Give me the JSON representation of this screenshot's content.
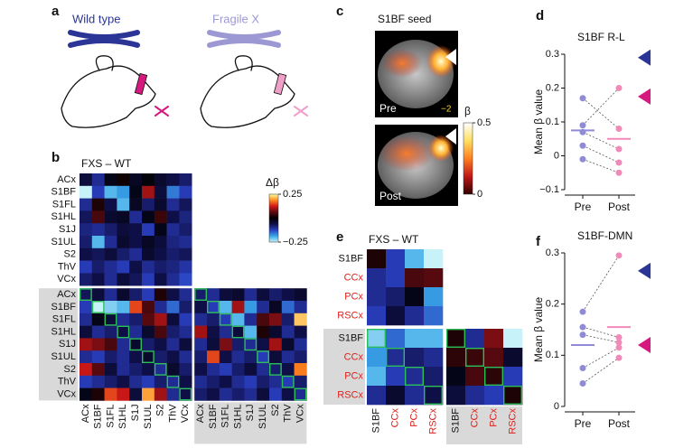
{
  "labels": [
    "a",
    "b",
    "c",
    "d",
    "e",
    "f"
  ],
  "illustration": {
    "left": "Wild type",
    "right": "Fragile X"
  },
  "brain": {
    "title": "S1BF seed",
    "pre": "Pre",
    "post": "Post",
    "slice": "−2",
    "colorbar": {
      "label": "β",
      "ticks": [
        0,
        0.5
      ]
    }
  },
  "chart_data": [
    {
      "type": "heatmap",
      "title": "FXS – WT",
      "colorbar_label": "Δβ",
      "zlim": [
        -0.25,
        0.25
      ],
      "zticks": [
        0.25,
        {
          "value": -0.25,
          "label": "−0.25"
        }
      ],
      "colormap": [
        "#c8f2fa",
        "#38a8e8",
        "#2a3fc0",
        "#10104a",
        "#000000",
        "#5a0a10",
        "#d01818",
        "#ff8a20",
        "#ffffa0"
      ],
      "rows": [
        "ACx",
        "S1BF",
        "S1FL",
        "S1HL",
        "S1J",
        "S1UL",
        "S2",
        "ThV",
        "VCx",
        "ACx",
        "S1BF",
        "S1FL",
        "S1HL",
        "S1J",
        "S1UL",
        "S2",
        "ThV",
        "VCx"
      ],
      "columns": [
        "ACx",
        "S1BF",
        "S1FL",
        "S1HL",
        "S1J",
        "S1UL",
        "S2",
        "ThV",
        "VCx",
        "ACx",
        "S1BF",
        "S1FL",
        "S1HL",
        "S1J",
        "S1UL",
        "S2",
        "ThV",
        "VCx"
      ],
      "matrix": [
        [
          -0.05,
          -0.1,
          -0.02,
          0.01,
          -0.03,
          -0.01,
          -0.04,
          -0.06,
          -0.08,
          null,
          null,
          null,
          null,
          null,
          null,
          null,
          null,
          null
        ],
        [
          -0.25,
          -0.12,
          -0.2,
          -0.18,
          -0.02,
          0.1,
          -0.05,
          -0.16,
          -0.12,
          null,
          null,
          null,
          null,
          null,
          null,
          null,
          null,
          null
        ],
        [
          -0.1,
          0.02,
          -0.06,
          -0.2,
          -0.03,
          -0.08,
          -0.04,
          -0.1,
          -0.07,
          null,
          null,
          null,
          null,
          null,
          null,
          null,
          null,
          null
        ],
        [
          -0.07,
          0.05,
          -0.04,
          -0.03,
          -0.1,
          -0.02,
          0.04,
          -0.06,
          -0.09,
          null,
          null,
          null,
          null,
          null,
          null,
          null,
          null,
          null
        ],
        [
          -0.09,
          -0.1,
          -0.08,
          -0.05,
          -0.06,
          -0.12,
          -0.02,
          -0.1,
          -0.08,
          null,
          null,
          null,
          null,
          null,
          null,
          null,
          null,
          null
        ],
        [
          -0.08,
          -0.2,
          -0.1,
          -0.04,
          -0.06,
          -0.03,
          -0.05,
          -0.09,
          -0.1,
          null,
          null,
          null,
          null,
          null,
          null,
          null,
          null,
          null
        ],
        [
          -0.06,
          -0.07,
          -0.05,
          -0.08,
          -0.1,
          -0.04,
          -0.06,
          -0.08,
          -0.07,
          null,
          null,
          null,
          null,
          null,
          null,
          null,
          null,
          null
        ],
        [
          -0.12,
          -0.08,
          -0.1,
          -0.12,
          -0.06,
          -0.1,
          -0.08,
          -0.09,
          -0.11,
          null,
          null,
          null,
          null,
          null,
          null,
          null,
          null,
          null
        ],
        [
          -0.08,
          -0.06,
          -0.1,
          -0.05,
          -0.07,
          -0.12,
          -0.06,
          -0.1,
          -0.13,
          null,
          null,
          null,
          null,
          null,
          null,
          null,
          null,
          null
        ],
        [
          -0.07,
          -0.05,
          -0.1,
          -0.04,
          -0.08,
          -0.12,
          0.02,
          -0.06,
          -0.1,
          -0.08,
          -0.1,
          -0.05,
          -0.04,
          -0.1,
          -0.05,
          -0.08,
          -0.06,
          -0.04
        ],
        [
          -0.12,
          -0.25,
          -0.22,
          -0.2,
          0.15,
          0.05,
          -0.1,
          -0.15,
          -0.08,
          -0.06,
          -0.12,
          -0.2,
          0.1,
          -0.18,
          -0.1,
          -0.03,
          -0.15,
          -0.1
        ],
        [
          -0.1,
          -0.02,
          -0.05,
          -0.1,
          -0.08,
          0.06,
          0.1,
          -0.05,
          -0.12,
          -0.1,
          -0.08,
          -0.12,
          -0.2,
          -0.1,
          0.05,
          0.08,
          -0.08,
          0.22
        ],
        [
          -0.05,
          -0.1,
          -0.08,
          -0.06,
          -0.1,
          -0.04,
          0.05,
          -0.08,
          -0.1,
          0.1,
          -0.06,
          -0.1,
          -0.05,
          -0.2,
          0.02,
          -0.04,
          -0.1,
          -0.06
        ],
        [
          0.1,
          0.08,
          0.05,
          -0.1,
          -0.04,
          -0.08,
          -0.06,
          -0.1,
          -0.05,
          -0.1,
          -0.05,
          0.08,
          -0.08,
          -0.1,
          -0.06,
          0.1,
          -0.04,
          -0.1
        ],
        [
          -0.1,
          -0.12,
          -0.08,
          -0.1,
          -0.06,
          -0.04,
          -0.08,
          -0.06,
          -0.1,
          -0.08,
          0.15,
          -0.06,
          -0.1,
          -0.08,
          -0.12,
          -0.05,
          -0.1,
          -0.08
        ],
        [
          0.12,
          0.06,
          -0.05,
          -0.1,
          -0.08,
          -0.06,
          -0.1,
          -0.04,
          -0.08,
          -0.06,
          -0.1,
          -0.12,
          -0.08,
          -0.05,
          -0.1,
          -0.08,
          -0.06,
          0.18
        ],
        [
          -0.12,
          -0.1,
          -0.08,
          -0.06,
          -0.1,
          -0.12,
          -0.08,
          -0.1,
          -0.06,
          -0.1,
          -0.08,
          -0.06,
          -0.1,
          -0.12,
          -0.08,
          -0.1,
          -0.12,
          -0.08
        ],
        [
          -0.02,
          0.02,
          0.15,
          0.12,
          -0.05,
          0.2,
          0.1,
          -0.1,
          -0.06,
          -0.08,
          -0.06,
          -0.1,
          -0.08,
          -0.1,
          -0.05,
          -0.12,
          -0.06,
          -0.1
        ]
      ]
    },
    {
      "type": "heatmap",
      "title": "FXS – WT",
      "zlim": [
        -0.25,
        0.25
      ],
      "colormap": [
        "#c8f2fa",
        "#38a8e8",
        "#2a3fc0",
        "#10104a",
        "#000000",
        "#5a0a10",
        "#d01818",
        "#ff8a20",
        "#ffffa0"
      ],
      "label_colors": [
        "#111111",
        "#e0201c",
        "#e0201c",
        "#e0201c",
        "#111111",
        "#e0201c",
        "#e0201c",
        "#e0201c"
      ],
      "rows": [
        "S1BF",
        "CCx",
        "PCx",
        "RSCx",
        "S1BF",
        "CCx",
        "PCx",
        "RSCx"
      ],
      "columns": [
        "S1BF",
        "CCx",
        "PCx",
        "RSCx",
        "S1BF",
        "CCx",
        "PCx",
        "RSCx"
      ],
      "matrix": [
        [
          0.02,
          -0.12,
          -0.2,
          -0.25,
          null,
          null,
          null,
          null
        ],
        [
          -0.1,
          -0.12,
          0.05,
          0.06,
          null,
          null,
          null,
          null
        ],
        [
          -0.1,
          -0.08,
          -0.02,
          -0.18,
          null,
          null,
          null,
          null
        ],
        [
          -0.12,
          -0.05,
          -0.1,
          -0.15,
          null,
          null,
          null,
          null
        ],
        [
          -0.22,
          -0.15,
          -0.2,
          -0.2,
          0.02,
          -0.1,
          0.08,
          -0.25
        ],
        [
          -0.18,
          -0.1,
          -0.08,
          -0.1,
          0.03,
          0.04,
          0.06,
          -0.04
        ],
        [
          -0.2,
          -0.12,
          -0.1,
          -0.08,
          -0.02,
          0.05,
          0.03,
          -0.12
        ],
        [
          -0.1,
          -0.04,
          -0.1,
          -0.06,
          -0.05,
          -0.1,
          -0.12,
          0.02
        ]
      ]
    },
    {
      "type": "scatter",
      "title": "S1BF R-L",
      "ylabel": "Mean β value",
      "categories": [
        "Pre",
        "Post"
      ],
      "ylim": [
        -0.1,
        0.3
      ],
      "yticks": [
        {
          "value": -0.1,
          "label": "−0.1"
        },
        0,
        0.1,
        0.2,
        0.3
      ],
      "series": [
        {
          "color": "#8f8bd6",
          "values": [
            0.17,
            0.09,
            0.07,
            0.03,
            -0.01
          ],
          "mean": 0.075
        },
        {
          "color": "#f08ab8",
          "values": [
            0.08,
            0.2,
            0.02,
            -0.02,
            -0.05
          ],
          "mean": 0.05
        }
      ],
      "markers": [
        {
          "value": 0.29,
          "color": "#2b3595"
        },
        {
          "value": 0.175,
          "color": "#d6197e"
        }
      ]
    },
    {
      "type": "scatter",
      "title": "S1BF-DMN",
      "ylabel": "Mean β value",
      "categories": [
        "Pre",
        "Post"
      ],
      "ylim": [
        0,
        0.3
      ],
      "yticks": [
        0,
        0.1,
        0.2,
        0.3
      ],
      "series": [
        {
          "color": "#8f8bd6",
          "values": [
            0.185,
            0.155,
            0.14,
            0.075,
            0.045
          ],
          "mean": 0.12
        },
        {
          "color": "#f08ab8",
          "values": [
            0.295,
            0.135,
            0.125,
            0.115,
            0.095
          ],
          "mean": 0.155
        }
      ],
      "markers": [
        {
          "value": 0.265,
          "color": "#2b3595"
        },
        {
          "value": 0.12,
          "color": "#d6197e"
        }
      ]
    }
  ]
}
